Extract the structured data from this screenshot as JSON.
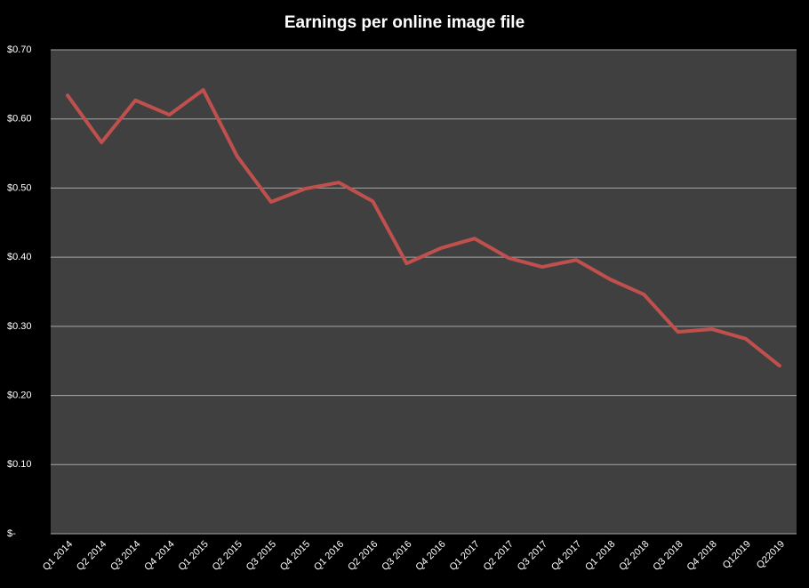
{
  "chart_data": {
    "type": "line",
    "title": "Earnings per online image file",
    "categories": [
      "Q1 2014",
      "Q2 2014",
      "Q3 2014",
      "Q4 2014",
      "Q1 2015",
      "Q2 2015",
      "Q3 2015",
      "Q4 2015",
      "Q1 2016",
      "Q2 2016",
      "Q3 2016",
      "Q4 2016",
      "Q1 2017",
      "Q2 2017",
      "Q3 2017",
      "Q4 2017",
      "Q1 2018",
      "Q2 2018",
      "Q3 2018",
      "Q4 2018",
      "Q12019",
      "Q22019"
    ],
    "values": [
      0.634,
      0.566,
      0.627,
      0.606,
      0.642,
      0.546,
      0.48,
      0.499,
      0.508,
      0.481,
      0.391,
      0.413,
      0.427,
      0.399,
      0.386,
      0.396,
      0.368,
      0.346,
      0.292,
      0.296,
      0.282,
      0.243
    ],
    "color": "#c0504d",
    "ylim": [
      0,
      0.7
    ],
    "yticks": [
      {
        "value": 0,
        "label": "$-"
      },
      {
        "value": 0.1,
        "label": "$0.10"
      },
      {
        "value": 0.2,
        "label": "$0.20"
      },
      {
        "value": 0.3,
        "label": "$0.30"
      },
      {
        "value": 0.4,
        "label": "$0.40"
      },
      {
        "value": 0.5,
        "label": "$0.50"
      },
      {
        "value": 0.6,
        "label": "$0.60"
      },
      {
        "value": 0.7,
        "label": "$0.70"
      }
    ],
    "grid": true
  }
}
